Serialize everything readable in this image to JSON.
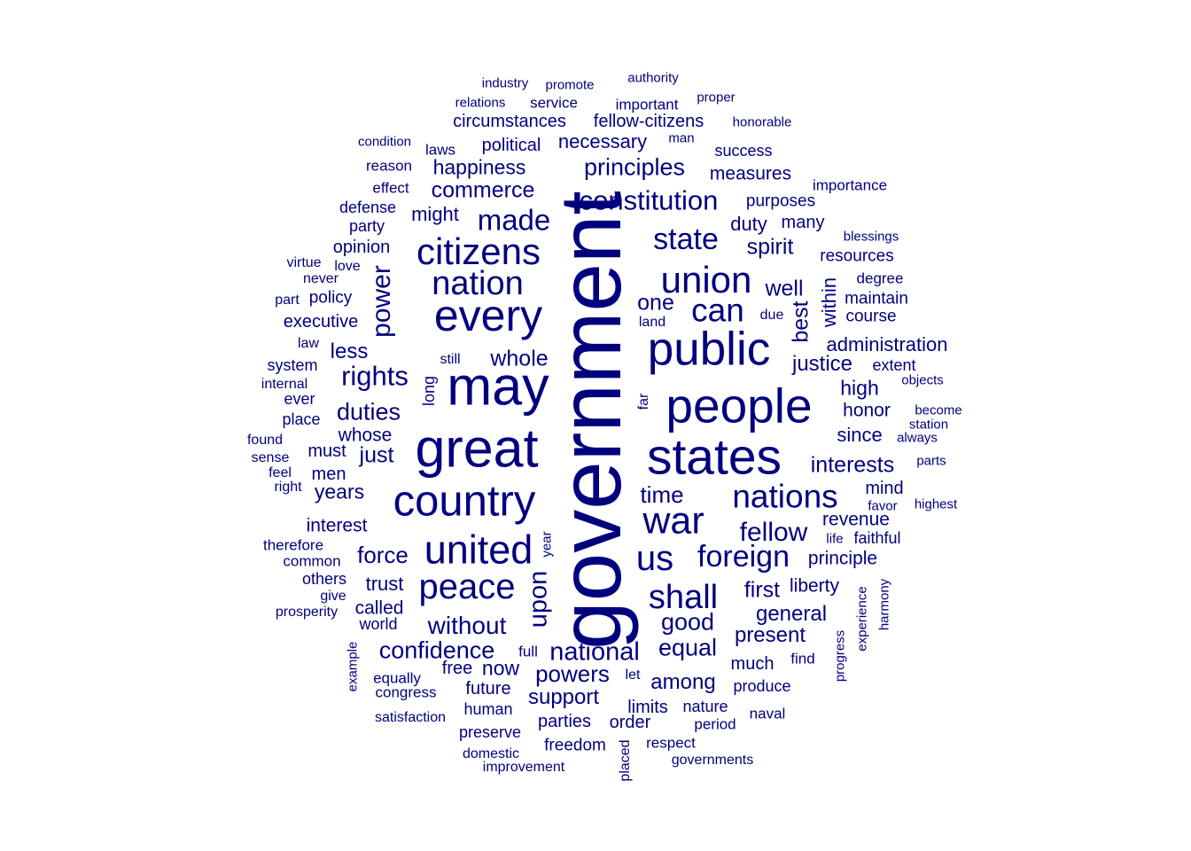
{
  "cloud": {
    "color": "#00007f",
    "words": [
      {
        "text": "government",
        "size": 1.0,
        "rot": 1
      },
      {
        "text": "may",
        "size": 0.62
      },
      {
        "text": "great",
        "size": 0.62
      },
      {
        "text": "people",
        "size": 0.56
      },
      {
        "text": "states",
        "size": 0.58
      },
      {
        "text": "public",
        "size": 0.54
      },
      {
        "text": "every",
        "size": 0.51
      },
      {
        "text": "country",
        "size": 0.5
      },
      {
        "text": "united",
        "size": 0.46
      },
      {
        "text": "war",
        "size": 0.44
      },
      {
        "text": "union",
        "size": 0.43
      },
      {
        "text": "citizens",
        "size": 0.43
      },
      {
        "text": "peace",
        "size": 0.41
      },
      {
        "text": "nation",
        "size": 0.39
      },
      {
        "text": "us",
        "size": 0.41
      },
      {
        "text": "shall",
        "size": 0.39
      },
      {
        "text": "nations",
        "size": 0.38
      },
      {
        "text": "can",
        "size": 0.38
      },
      {
        "text": "foreign",
        "size": 0.35
      },
      {
        "text": "state",
        "size": 0.35
      },
      {
        "text": "made",
        "size": 0.34
      },
      {
        "text": "constitution",
        "size": 0.32
      },
      {
        "text": "rights",
        "size": 0.32
      },
      {
        "text": "fellow",
        "size": 0.31
      },
      {
        "text": "power",
        "size": 0.31,
        "rot": 1
      },
      {
        "text": "without",
        "size": 0.29
      },
      {
        "text": "national",
        "size": 0.3
      },
      {
        "text": "upon",
        "size": 0.3,
        "rot": 1
      },
      {
        "text": "confidence",
        "size": 0.28
      },
      {
        "text": "principles",
        "size": 0.28
      },
      {
        "text": "duties",
        "size": 0.28
      },
      {
        "text": "powers",
        "size": 0.27
      },
      {
        "text": "force",
        "size": 0.27
      },
      {
        "text": "good",
        "size": 0.28
      },
      {
        "text": "equal",
        "size": 0.28
      },
      {
        "text": "whole",
        "size": 0.26
      },
      {
        "text": "time",
        "size": 0.27
      },
      {
        "text": "just",
        "size": 0.26
      },
      {
        "text": "commerce",
        "size": 0.25
      },
      {
        "text": "interests",
        "size": 0.25
      },
      {
        "text": "best",
        "size": 0.26,
        "rot": 1
      },
      {
        "text": "one",
        "size": 0.25
      },
      {
        "text": "well",
        "size": 0.25
      },
      {
        "text": "first",
        "size": 0.25
      },
      {
        "text": "spirit",
        "size": 0.25
      },
      {
        "text": "general",
        "size": 0.24
      },
      {
        "text": "present",
        "size": 0.24
      },
      {
        "text": "among",
        "size": 0.24
      },
      {
        "text": "justice",
        "size": 0.24
      },
      {
        "text": "support",
        "size": 0.24
      },
      {
        "text": "less",
        "size": 0.24
      },
      {
        "text": "happiness",
        "size": 0.23
      },
      {
        "text": "now",
        "size": 0.23
      },
      {
        "text": "years",
        "size": 0.23
      },
      {
        "text": "high",
        "size": 0.23
      },
      {
        "text": "since",
        "size": 0.22
      },
      {
        "text": "duty",
        "size": 0.22
      },
      {
        "text": "trust",
        "size": 0.22
      },
      {
        "text": "administration",
        "size": 0.22
      },
      {
        "text": "liberty",
        "size": 0.21
      },
      {
        "text": "necessary",
        "size": 0.22
      },
      {
        "text": "within",
        "size": 0.22,
        "rot": 1
      },
      {
        "text": "might",
        "size": 0.22
      },
      {
        "text": "called",
        "size": 0.21
      },
      {
        "text": "measures",
        "size": 0.21
      },
      {
        "text": "whose",
        "size": 0.21
      },
      {
        "text": "interest",
        "size": 0.21
      },
      {
        "text": "principle",
        "size": 0.21
      },
      {
        "text": "fellow-citizens",
        "size": 0.2
      },
      {
        "text": "circumstances",
        "size": 0.2
      },
      {
        "text": "honor",
        "size": 0.21
      },
      {
        "text": "revenue",
        "size": 0.21
      },
      {
        "text": "executive",
        "size": 0.2
      },
      {
        "text": "mind",
        "size": 0.2
      },
      {
        "text": "political",
        "size": 0.2
      },
      {
        "text": "opinion",
        "size": 0.2
      },
      {
        "text": "much",
        "size": 0.2
      },
      {
        "text": "future",
        "size": 0.2
      },
      {
        "text": "limits",
        "size": 0.2
      },
      {
        "text": "parties",
        "size": 0.2
      },
      {
        "text": "order",
        "size": 0.2
      },
      {
        "text": "many",
        "size": 0.2
      },
      {
        "text": "purposes",
        "size": 0.19
      },
      {
        "text": "resources",
        "size": 0.19
      },
      {
        "text": "maintain",
        "size": 0.19
      },
      {
        "text": "course",
        "size": 0.19
      },
      {
        "text": "freedom",
        "size": 0.19
      },
      {
        "text": "men",
        "size": 0.2
      },
      {
        "text": "must",
        "size": 0.2
      },
      {
        "text": "policy",
        "size": 0.19
      },
      {
        "text": "others",
        "size": 0.18
      },
      {
        "text": "human",
        "size": 0.18
      },
      {
        "text": "preserve",
        "size": 0.18
      },
      {
        "text": "nature",
        "size": 0.18
      },
      {
        "text": "faithful",
        "size": 0.18
      },
      {
        "text": "produce",
        "size": 0.18
      },
      {
        "text": "system",
        "size": 0.18
      },
      {
        "text": "success",
        "size": 0.18
      },
      {
        "text": "free",
        "size": 0.2
      },
      {
        "text": "long",
        "size": 0.18,
        "rot": 1
      },
      {
        "text": "world",
        "size": 0.18
      },
      {
        "text": "place",
        "size": 0.18
      },
      {
        "text": "ever",
        "size": 0.18
      },
      {
        "text": "defense",
        "size": 0.18
      },
      {
        "text": "party",
        "size": 0.18
      },
      {
        "text": "extent",
        "size": 0.18
      },
      {
        "text": "degree",
        "size": 0.17
      },
      {
        "text": "importance",
        "size": 0.17
      },
      {
        "text": "important",
        "size": 0.17
      },
      {
        "text": "service",
        "size": 0.17
      },
      {
        "text": "laws",
        "size": 0.17
      },
      {
        "text": "reason",
        "size": 0.17
      },
      {
        "text": "effect",
        "size": 0.17
      },
      {
        "text": "therefore",
        "size": 0.17
      },
      {
        "text": "common",
        "size": 0.17
      },
      {
        "text": "equally",
        "size": 0.17
      },
      {
        "text": "congress",
        "size": 0.17
      },
      {
        "text": "respect",
        "size": 0.17
      },
      {
        "text": "period",
        "size": 0.17
      },
      {
        "text": "naval",
        "size": 0.17
      },
      {
        "text": "find",
        "size": 0.17
      },
      {
        "text": "full",
        "size": 0.17
      },
      {
        "text": "domestic",
        "size": 0.16
      },
      {
        "text": "improvement",
        "size": 0.16
      },
      {
        "text": "governments",
        "size": 0.16
      },
      {
        "text": "placed",
        "size": 0.16,
        "rot": 1
      },
      {
        "text": "satisfaction",
        "size": 0.16
      },
      {
        "text": "prosperity",
        "size": 0.16
      },
      {
        "text": "give",
        "size": 0.16
      },
      {
        "text": "sense",
        "size": 0.16
      },
      {
        "text": "found",
        "size": 0.16
      },
      {
        "text": "internal",
        "size": 0.16
      },
      {
        "text": "law",
        "size": 0.16
      },
      {
        "text": "never",
        "size": 0.16
      },
      {
        "text": "virtue",
        "size": 0.16
      },
      {
        "text": "love",
        "size": 0.16
      },
      {
        "text": "part",
        "size": 0.16
      },
      {
        "text": "feel",
        "size": 0.16
      },
      {
        "text": "right",
        "size": 0.16
      },
      {
        "text": "still",
        "size": 0.16
      },
      {
        "text": "let",
        "size": 0.16
      },
      {
        "text": "due",
        "size": 0.16
      },
      {
        "text": "land",
        "size": 0.16
      },
      {
        "text": "far",
        "size": 0.16,
        "rot": 1
      },
      {
        "text": "year",
        "size": 0.15,
        "rot": 1
      },
      {
        "text": "example",
        "size": 0.15,
        "rot": 1
      },
      {
        "text": "progress",
        "size": 0.15,
        "rot": 1
      },
      {
        "text": "experience",
        "size": 0.15,
        "rot": 1
      },
      {
        "text": "harmony",
        "size": 0.15,
        "rot": 1
      },
      {
        "text": "condition",
        "size": 0.15
      },
      {
        "text": "industry",
        "size": 0.15
      },
      {
        "text": "promote",
        "size": 0.15
      },
      {
        "text": "authority",
        "size": 0.15
      },
      {
        "text": "relations",
        "size": 0.15
      },
      {
        "text": "proper",
        "size": 0.15
      },
      {
        "text": "honorable",
        "size": 0.15
      },
      {
        "text": "man",
        "size": 0.15
      },
      {
        "text": "blessings",
        "size": 0.15
      },
      {
        "text": "objects",
        "size": 0.15
      },
      {
        "text": "become",
        "size": 0.15
      },
      {
        "text": "station",
        "size": 0.15
      },
      {
        "text": "always",
        "size": 0.15
      },
      {
        "text": "parts",
        "size": 0.15
      },
      {
        "text": "highest",
        "size": 0.15
      },
      {
        "text": "favor",
        "size": 0.15
      },
      {
        "text": "life",
        "size": 0.15
      }
    ]
  }
}
